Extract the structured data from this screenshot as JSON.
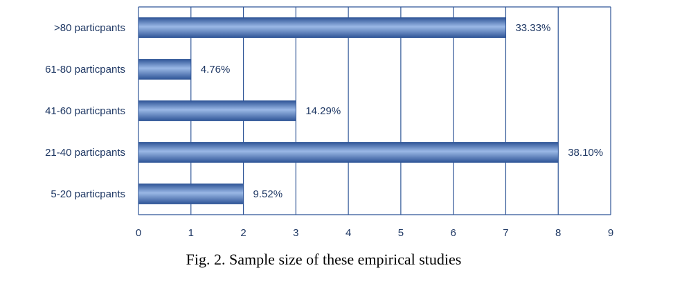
{
  "caption": "Fig. 2. Sample size of these empirical studies",
  "chart_data": {
    "type": "bar",
    "orientation": "horizontal",
    "categories": [
      ">80  particpants",
      "61-80 particpants",
      "41-60 particpants",
      "21-40 particpants",
      "5-20  particpants"
    ],
    "values": [
      7,
      1,
      3,
      8,
      2
    ],
    "data_labels": [
      "33.33%",
      "4.76%",
      "14.29%",
      "38.10%",
      "9.52%"
    ],
    "xlim": [
      0,
      9
    ],
    "x_ticks": [
      "0",
      "1",
      "2",
      "3",
      "4",
      "5",
      "6",
      "7",
      "8",
      "9"
    ],
    "grid": true,
    "colors": {
      "bar": "#4472c4",
      "bar_light": "#9ab8e6",
      "bar_dark": "#2f5597",
      "grid": "#2f5597",
      "text": "#1f3864"
    }
  }
}
